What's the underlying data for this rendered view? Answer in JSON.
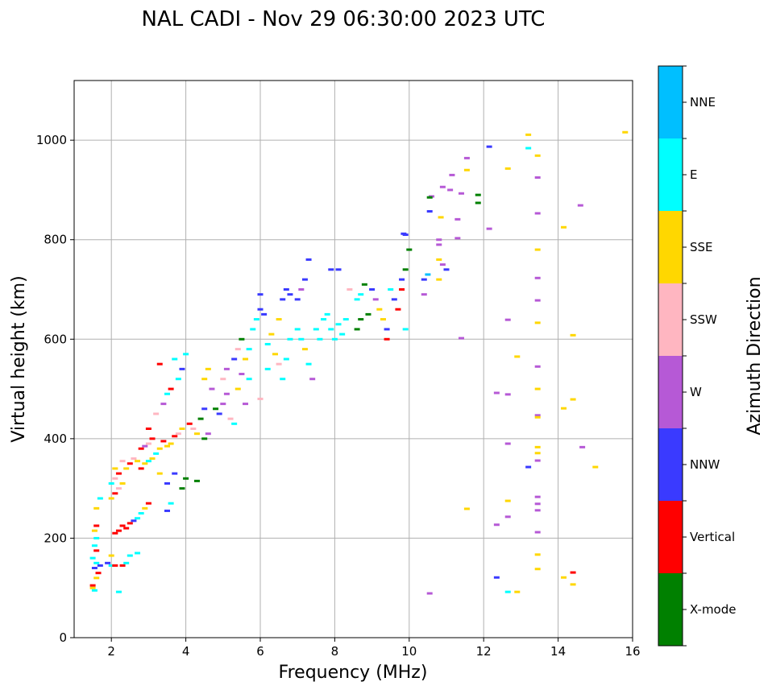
{
  "chart_data": {
    "type": "scatter",
    "title": "NAL CADI - Nov 29 06:30:00 2023 UTC",
    "xlabel": "Frequency (MHz)",
    "ylabel": "Virtual height (km)",
    "xlim": [
      1,
      16
    ],
    "ylim": [
      0,
      1120
    ],
    "xticks": [
      2,
      4,
      6,
      8,
      10,
      12,
      14,
      16
    ],
    "yticks": [
      0,
      200,
      400,
      600,
      800,
      1000
    ],
    "grid": true,
    "colorbar": {
      "label": "Azimuth Direction",
      "categories": [
        "X-mode",
        "Vertical",
        "NNW",
        "W",
        "SSW",
        "SSE",
        "E",
        "NNE"
      ],
      "colors": [
        "#008000",
        "#ff0000",
        "#3a3aff",
        "#b659d6",
        "#ffb6c1",
        "#ffd700",
        "#00ffff",
        "#00bfff"
      ]
    },
    "points_format": [
      "frequency_mhz",
      "virtual_height_km",
      "category_index"
    ],
    "points": [
      [
        15.8,
        1016,
        5
      ],
      [
        13.2,
        1011,
        5
      ],
      [
        13.2,
        984,
        6
      ],
      [
        13.45,
        969,
        5
      ],
      [
        12.15,
        987,
        2
      ],
      [
        12.65,
        943,
        5
      ],
      [
        11.55,
        964,
        3
      ],
      [
        11.55,
        940,
        5
      ],
      [
        13.45,
        925,
        3
      ],
      [
        11.15,
        930,
        3
      ],
      [
        10.9,
        906,
        3
      ],
      [
        10.6,
        887,
        3
      ],
      [
        10.55,
        885,
        0
      ],
      [
        11.85,
        890,
        0
      ],
      [
        11.85,
        874,
        0
      ],
      [
        11.4,
        893,
        3
      ],
      [
        11.1,
        900,
        3
      ],
      [
        14.6,
        869,
        3
      ],
      [
        13.45,
        853,
        3
      ],
      [
        10.85,
        845,
        5
      ],
      [
        11.3,
        841,
        3
      ],
      [
        10.55,
        857,
        2
      ],
      [
        12.15,
        822,
        3
      ],
      [
        14.15,
        825,
        5
      ],
      [
        11.3,
        803,
        3
      ],
      [
        9.85,
        812,
        2
      ],
      [
        13.45,
        780,
        5
      ],
      [
        13.45,
        723,
        3
      ],
      [
        12.65,
        639,
        3
      ],
      [
        13.45,
        678,
        3
      ],
      [
        13.45,
        633,
        5
      ],
      [
        14.4,
        608,
        5
      ],
      [
        11.4,
        602,
        3
      ],
      [
        12.9,
        565,
        5
      ],
      [
        13.45,
        545,
        3
      ],
      [
        13.45,
        500,
        5
      ],
      [
        12.35,
        492,
        3
      ],
      [
        12.65,
        489,
        3
      ],
      [
        14.4,
        479,
        5
      ],
      [
        14.15,
        461,
        5
      ],
      [
        13.45,
        447,
        3
      ],
      [
        13.45,
        443,
        5
      ],
      [
        12.65,
        390,
        3
      ],
      [
        13.45,
        383,
        5
      ],
      [
        14.65,
        383,
        3
      ],
      [
        13.45,
        371,
        5
      ],
      [
        13.45,
        356,
        3
      ],
      [
        15.0,
        343,
        5
      ],
      [
        13.2,
        343,
        2
      ],
      [
        11.55,
        259,
        5
      ],
      [
        13.45,
        283,
        3
      ],
      [
        12.65,
        275,
        5
      ],
      [
        13.45,
        269,
        3
      ],
      [
        13.45,
        256,
        3
      ],
      [
        12.65,
        243,
        3
      ],
      [
        12.35,
        227,
        3
      ],
      [
        13.45,
        212,
        3
      ],
      [
        13.45,
        167,
        5
      ],
      [
        13.45,
        138,
        5
      ],
      [
        14.4,
        131,
        1
      ],
      [
        12.35,
        121,
        2
      ],
      [
        14.15,
        121,
        5
      ],
      [
        14.4,
        107,
        5
      ],
      [
        12.65,
        92,
        6
      ],
      [
        12.9,
        92,
        5
      ],
      [
        10.55,
        89,
        3
      ],
      [
        1.5,
        100,
        5
      ],
      [
        1.5,
        105,
        1
      ],
      [
        1.55,
        95,
        6
      ],
      [
        1.6,
        120,
        5
      ],
      [
        1.55,
        140,
        2
      ],
      [
        1.6,
        150,
        6
      ],
      [
        1.5,
        160,
        6
      ],
      [
        1.6,
        175,
        1
      ],
      [
        1.55,
        185,
        6
      ],
      [
        1.6,
        200,
        6
      ],
      [
        1.55,
        215,
        5
      ],
      [
        1.6,
        225,
        1
      ],
      [
        1.6,
        260,
        5
      ],
      [
        1.7,
        280,
        6
      ],
      [
        1.65,
        130,
        1
      ],
      [
        1.7,
        145,
        2
      ],
      [
        1.9,
        150,
        2
      ],
      [
        2.0,
        145,
        6
      ],
      [
        2.1,
        145,
        1
      ],
      [
        2.3,
        145,
        1
      ],
      [
        2.4,
        150,
        6
      ],
      [
        2.0,
        165,
        5
      ],
      [
        2.5,
        165,
        6
      ],
      [
        2.7,
        170,
        6
      ],
      [
        2.1,
        210,
        1
      ],
      [
        2.2,
        215,
        1
      ],
      [
        2.3,
        225,
        1
      ],
      [
        2.4,
        220,
        1
      ],
      [
        2.5,
        230,
        1
      ],
      [
        2.6,
        235,
        2
      ],
      [
        2.7,
        240,
        6
      ],
      [
        2.8,
        250,
        6
      ],
      [
        2.9,
        260,
        5
      ],
      [
        3.0,
        270,
        1
      ],
      [
        2.0,
        280,
        5
      ],
      [
        2.1,
        290,
        1
      ],
      [
        2.2,
        300,
        4
      ],
      [
        2.3,
        310,
        5
      ],
      [
        2.0,
        310,
        6
      ],
      [
        2.1,
        320,
        4
      ],
      [
        2.2,
        330,
        1
      ],
      [
        2.4,
        340,
        5
      ],
      [
        2.5,
        350,
        1
      ],
      [
        2.3,
        355,
        4
      ],
      [
        2.1,
        340,
        5
      ],
      [
        2.6,
        360,
        4
      ],
      [
        2.7,
        355,
        5
      ],
      [
        2.8,
        340,
        1
      ],
      [
        2.9,
        350,
        5
      ],
      [
        3.0,
        355,
        6
      ],
      [
        3.1,
        360,
        5
      ],
      [
        3.2,
        370,
        6
      ],
      [
        3.3,
        380,
        5
      ],
      [
        2.8,
        380,
        1
      ],
      [
        2.9,
        385,
        3
      ],
      [
        3.0,
        390,
        4
      ],
      [
        3.1,
        400,
        1
      ],
      [
        3.4,
        395,
        1
      ],
      [
        3.5,
        385,
        5
      ],
      [
        3.6,
        390,
        5
      ],
      [
        3.7,
        405,
        1
      ],
      [
        3.8,
        410,
        4
      ],
      [
        3.9,
        420,
        5
      ],
      [
        3.3,
        330,
        5
      ],
      [
        3.5,
        310,
        2
      ],
      [
        3.9,
        300,
        0
      ],
      [
        4.0,
        320,
        0
      ],
      [
        4.3,
        315,
        0
      ],
      [
        3.7,
        330,
        2
      ],
      [
        3.6,
        270,
        6
      ],
      [
        3.5,
        255,
        2
      ],
      [
        2.2,
        92,
        6
      ],
      [
        3.0,
        420,
        1
      ],
      [
        3.2,
        450,
        4
      ],
      [
        3.4,
        470,
        3
      ],
      [
        3.5,
        490,
        6
      ],
      [
        3.6,
        500,
        1
      ],
      [
        3.8,
        520,
        6
      ],
      [
        3.9,
        540,
        2
      ],
      [
        4.0,
        570,
        6
      ],
      [
        3.3,
        550,
        1
      ],
      [
        3.7,
        560,
        6
      ],
      [
        4.1,
        430,
        1
      ],
      [
        4.2,
        420,
        4
      ],
      [
        4.3,
        410,
        5
      ],
      [
        4.5,
        400,
        0
      ],
      [
        4.6,
        410,
        3
      ],
      [
        4.4,
        440,
        0
      ],
      [
        4.5,
        460,
        2
      ],
      [
        4.5,
        520,
        5
      ],
      [
        4.6,
        540,
        5
      ],
      [
        4.7,
        500,
        3
      ],
      [
        4.8,
        460,
        0
      ],
      [
        4.9,
        450,
        2
      ],
      [
        5.0,
        470,
        3
      ],
      [
        5.1,
        490,
        3
      ],
      [
        5.2,
        440,
        4
      ],
      [
        5.3,
        430,
        6
      ],
      [
        5.0,
        520,
        4
      ],
      [
        5.1,
        540,
        3
      ],
      [
        5.3,
        560,
        2
      ],
      [
        5.4,
        580,
        4
      ],
      [
        5.5,
        600,
        0
      ],
      [
        5.4,
        500,
        5
      ],
      [
        5.5,
        530,
        3
      ],
      [
        5.6,
        470,
        3
      ],
      [
        5.7,
        520,
        6
      ],
      [
        5.6,
        560,
        5
      ],
      [
        5.7,
        580,
        6
      ],
      [
        5.8,
        620,
        6
      ],
      [
        5.9,
        640,
        6
      ],
      [
        6.0,
        660,
        2
      ],
      [
        6.0,
        690,
        2
      ],
      [
        6.1,
        650,
        2
      ],
      [
        6.2,
        590,
        6
      ],
      [
        6.3,
        610,
        5
      ],
      [
        6.4,
        570,
        5
      ],
      [
        6.5,
        550,
        4
      ],
      [
        6.6,
        520,
        6
      ],
      [
        6.7,
        560,
        6
      ],
      [
        6.8,
        600,
        6
      ],
      [
        6.2,
        540,
        6
      ],
      [
        6.0,
        480,
        4
      ],
      [
        6.5,
        640,
        5
      ],
      [
        6.6,
        680,
        2
      ],
      [
        6.7,
        700,
        2
      ],
      [
        6.8,
        690,
        2
      ],
      [
        7.0,
        680,
        2
      ],
      [
        7.1,
        700,
        3
      ],
      [
        7.2,
        720,
        2
      ],
      [
        7.3,
        760,
        2
      ],
      [
        7.0,
        620,
        6
      ],
      [
        7.1,
        600,
        6
      ],
      [
        7.2,
        580,
        5
      ],
      [
        7.3,
        550,
        6
      ],
      [
        7.4,
        520,
        3
      ],
      [
        7.5,
        620,
        6
      ],
      [
        7.6,
        600,
        6
      ],
      [
        7.7,
        640,
        6
      ],
      [
        7.8,
        650,
        6
      ],
      [
        7.9,
        620,
        6
      ],
      [
        8.0,
        600,
        6
      ],
      [
        8.1,
        630,
        6
      ],
      [
        8.2,
        610,
        6
      ],
      [
        8.3,
        640,
        6
      ],
      [
        7.9,
        740,
        2
      ],
      [
        8.1,
        740,
        2
      ],
      [
        8.4,
        700,
        4
      ],
      [
        8.6,
        680,
        6
      ],
      [
        8.7,
        690,
        6
      ],
      [
        8.8,
        710,
        0
      ],
      [
        8.7,
        640,
        0
      ],
      [
        8.9,
        650,
        0
      ],
      [
        9.0,
        700,
        2
      ],
      [
        9.1,
        680,
        3
      ],
      [
        9.2,
        660,
        5
      ],
      [
        9.3,
        640,
        5
      ],
      [
        9.4,
        620,
        2
      ],
      [
        9.5,
        700,
        6
      ],
      [
        9.6,
        680,
        2
      ],
      [
        9.7,
        660,
        1
      ],
      [
        9.8,
        720,
        2
      ],
      [
        9.8,
        700,
        1
      ],
      [
        9.9,
        740,
        0
      ],
      [
        10.0,
        780,
        0
      ],
      [
        9.9,
        810,
        2
      ],
      [
        9.9,
        620,
        6
      ],
      [
        9.4,
        600,
        1
      ],
      [
        10.4,
        720,
        2
      ],
      [
        10.5,
        730,
        7
      ],
      [
        10.8,
        720,
        5
      ],
      [
        10.8,
        760,
        5
      ],
      [
        10.9,
        750,
        3
      ],
      [
        10.8,
        790,
        3
      ],
      [
        10.8,
        800,
        3
      ],
      [
        11.0,
        740,
        2
      ],
      [
        10.4,
        690,
        3
      ],
      [
        8.6,
        620,
        0
      ]
    ]
  }
}
